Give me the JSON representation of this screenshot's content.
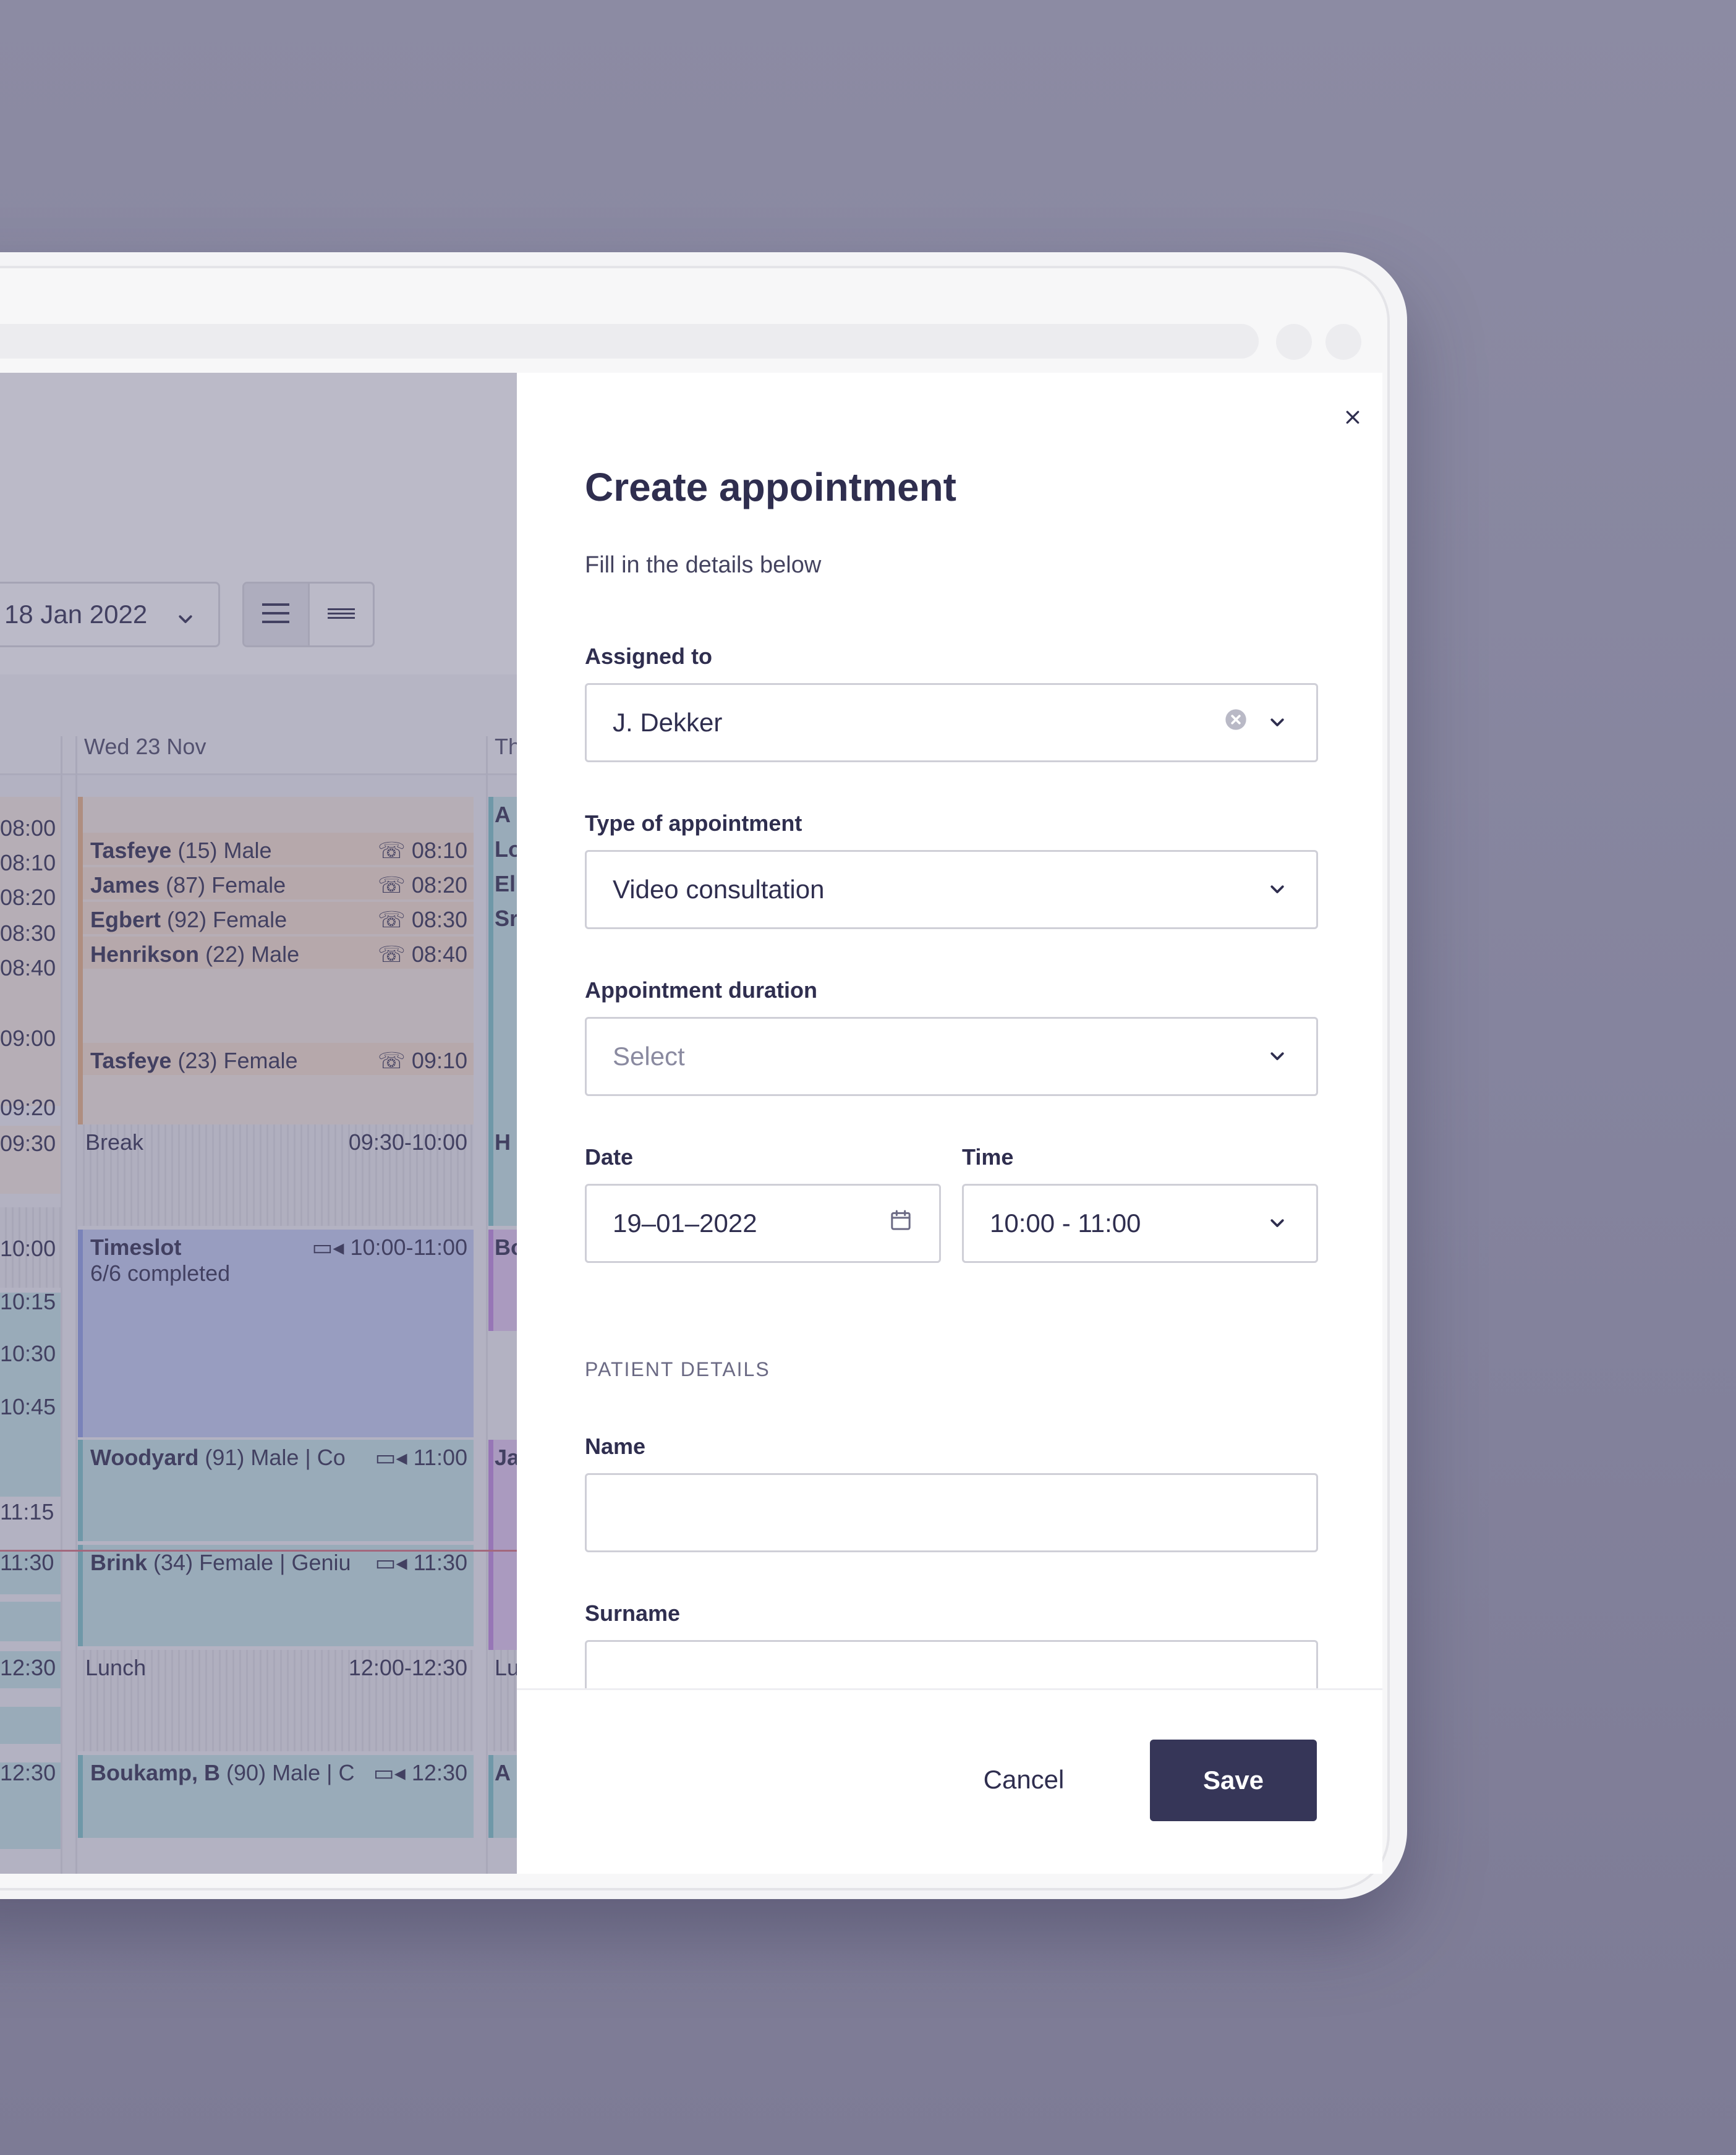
{
  "calendar": {
    "date_select": "18 Jan 2022",
    "day_headers": [
      "Wed 23 Nov",
      "Th"
    ],
    "left_times": [
      "08:00",
      "08:10",
      "08:20",
      "08:30",
      "08:40",
      "09:00",
      "09:20",
      "09:30",
      "10:00",
      "10:15",
      "10:30",
      "10:45",
      "11:15",
      "11:30",
      "12:30",
      "12:30"
    ],
    "events": [
      {
        "name": "Tasfeye",
        "info": "(15) Male",
        "time": "08:10"
      },
      {
        "name": "James",
        "info": "(87) Female",
        "time": "08:20"
      },
      {
        "name": "Egbert",
        "info": "(92) Female",
        "time": "08:30"
      },
      {
        "name": "Henrikson",
        "info": "(22) Male",
        "time": "08:40"
      },
      {
        "name": "Tasfeye",
        "info": "(23) Female",
        "time": "09:10"
      },
      {
        "name": "Break",
        "time_start": "09:30",
        "time_end": "10:00"
      },
      {
        "name": "Timeslot",
        "status": "6/6 completed",
        "time_start": "10:00",
        "time_end": "11:00"
      },
      {
        "name": "Woodyard",
        "info": "(91) Male | Co",
        "time": "11:00"
      },
      {
        "name": "Brink",
        "info": "(34) Female | Geniu",
        "time": "11:30"
      },
      {
        "name": "Lunch",
        "time_start": "12:00",
        "time_end": "12:30"
      },
      {
        "name": "Boukamp, B",
        "info": "(90) Male | C",
        "time": "12:30"
      }
    ],
    "next_col_letters": [
      "A",
      "Lo",
      "El",
      "Sr",
      "H",
      "Bo",
      "Ja",
      "Lu",
      "A"
    ],
    "range_sep": "-"
  },
  "drawer": {
    "title": "Create appointment",
    "subtitle": "Fill in the details below",
    "assigned_label": "Assigned to",
    "assigned_value": "J. Dekker",
    "type_label": "Type of appointment",
    "type_value": "Video consultation",
    "duration_label": "Appointment duration",
    "duration_placeholder": "Select",
    "date_label": "Date",
    "date_value": "19–01–2022",
    "time_label": "Time",
    "time_value": "10:00 - 11:00",
    "section_patient": "PATIENT DETAILS",
    "name_label": "Name",
    "surname_label": "Surname",
    "cancel_label": "Cancel",
    "save_label": "Save"
  },
  "icons": [
    "close-icon",
    "chevron-down-icon",
    "clear-icon",
    "calendar-icon",
    "phone-icon",
    "video-icon",
    "list-view-icon",
    "compact-view-icon"
  ]
}
